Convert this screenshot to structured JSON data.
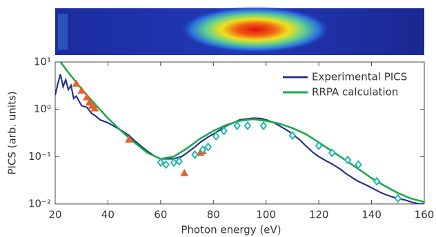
{
  "chart_data": {
    "type": "line",
    "xlabel": "Photon energy (eV)",
    "ylabel": "PICS (arb. units)",
    "xlim": [
      20,
      160
    ],
    "xticks": [
      20,
      40,
      60,
      80,
      100,
      120,
      140,
      160
    ],
    "ylim": [
      0.01,
      10
    ],
    "yticks": [
      {
        "value": 10,
        "label": "10¹"
      },
      {
        "value": 1,
        "label": "10⁰"
      },
      {
        "value": 0.1,
        "label": "10⁻¹"
      },
      {
        "value": 0.01,
        "label": "10⁻²"
      }
    ],
    "log_y": true,
    "legend": "upper right",
    "series": [
      {
        "name": "Experimental PICS",
        "type": "line",
        "color": "#27328a",
        "x": [
          20,
          21,
          22,
          23,
          24,
          25,
          26,
          27,
          28,
          30,
          32,
          34,
          35,
          37,
          40,
          42,
          45,
          48,
          50,
          53,
          55,
          58,
          60,
          63,
          65,
          68,
          70,
          73,
          75,
          78,
          80,
          83,
          85,
          88,
          90,
          93,
          95,
          98,
          100,
          103,
          105,
          108,
          110,
          113,
          115,
          118,
          120,
          123,
          125,
          128,
          130,
          133,
          135,
          138,
          140,
          143,
          145,
          148,
          150,
          153,
          155,
          158,
          160
        ],
        "values": [
          2.0,
          3.5,
          5.5,
          3.0,
          4.2,
          2.6,
          3.2,
          1.7,
          1.9,
          1.2,
          1.1,
          0.8,
          0.75,
          0.6,
          0.52,
          0.45,
          0.36,
          0.28,
          0.22,
          0.16,
          0.13,
          0.1,
          0.09,
          0.09,
          0.09,
          0.1,
          0.12,
          0.16,
          0.2,
          0.26,
          0.3,
          0.38,
          0.45,
          0.53,
          0.6,
          0.63,
          0.65,
          0.64,
          0.6,
          0.52,
          0.45,
          0.36,
          0.3,
          0.22,
          0.17,
          0.12,
          0.1,
          0.08,
          0.07,
          0.055,
          0.045,
          0.035,
          0.03,
          0.025,
          0.022,
          0.018,
          0.016,
          0.014,
          0.013,
          0.012,
          0.011,
          0.01,
          0.01
        ]
      },
      {
        "name": "RRPA calculation",
        "type": "line",
        "color": "#1aaa4a",
        "x": [
          22,
          25,
          30,
          35,
          40,
          45,
          50,
          55,
          60,
          65,
          70,
          75,
          80,
          85,
          90,
          95,
          100,
          105,
          110,
          115,
          120,
          125,
          130,
          135,
          140,
          145,
          150,
          155,
          160
        ],
        "values": [
          10,
          6,
          2.7,
          1.3,
          0.65,
          0.35,
          0.2,
          0.12,
          0.09,
          0.1,
          0.15,
          0.24,
          0.35,
          0.47,
          0.57,
          0.62,
          0.57,
          0.5,
          0.4,
          0.3,
          0.2,
          0.13,
          0.085,
          0.055,
          0.035,
          0.024,
          0.017,
          0.013,
          0.011
        ]
      },
      {
        "type": "scatter",
        "marker": "triangle",
        "color": "#e8612c",
        "x": [
          28,
          30,
          32,
          33,
          34,
          35,
          48,
          69,
          75,
          76
        ],
        "values": [
          3.5,
          2.5,
          1.8,
          1.4,
          1.2,
          1.05,
          0.23,
          0.045,
          0.12,
          0.13
        ]
      },
      {
        "type": "scatter",
        "marker": "diamond",
        "color": "#23b3b0",
        "x": [
          60,
          62,
          65,
          67,
          73,
          76,
          78,
          81,
          84,
          89,
          93,
          99,
          110,
          120,
          125,
          131,
          135,
          142,
          150
        ],
        "values": [
          0.075,
          0.068,
          0.075,
          0.08,
          0.11,
          0.14,
          0.16,
          0.27,
          0.35,
          0.45,
          0.45,
          0.45,
          0.28,
          0.17,
          0.12,
          0.085,
          0.068,
          0.03,
          0.013
        ]
      }
    ]
  }
}
